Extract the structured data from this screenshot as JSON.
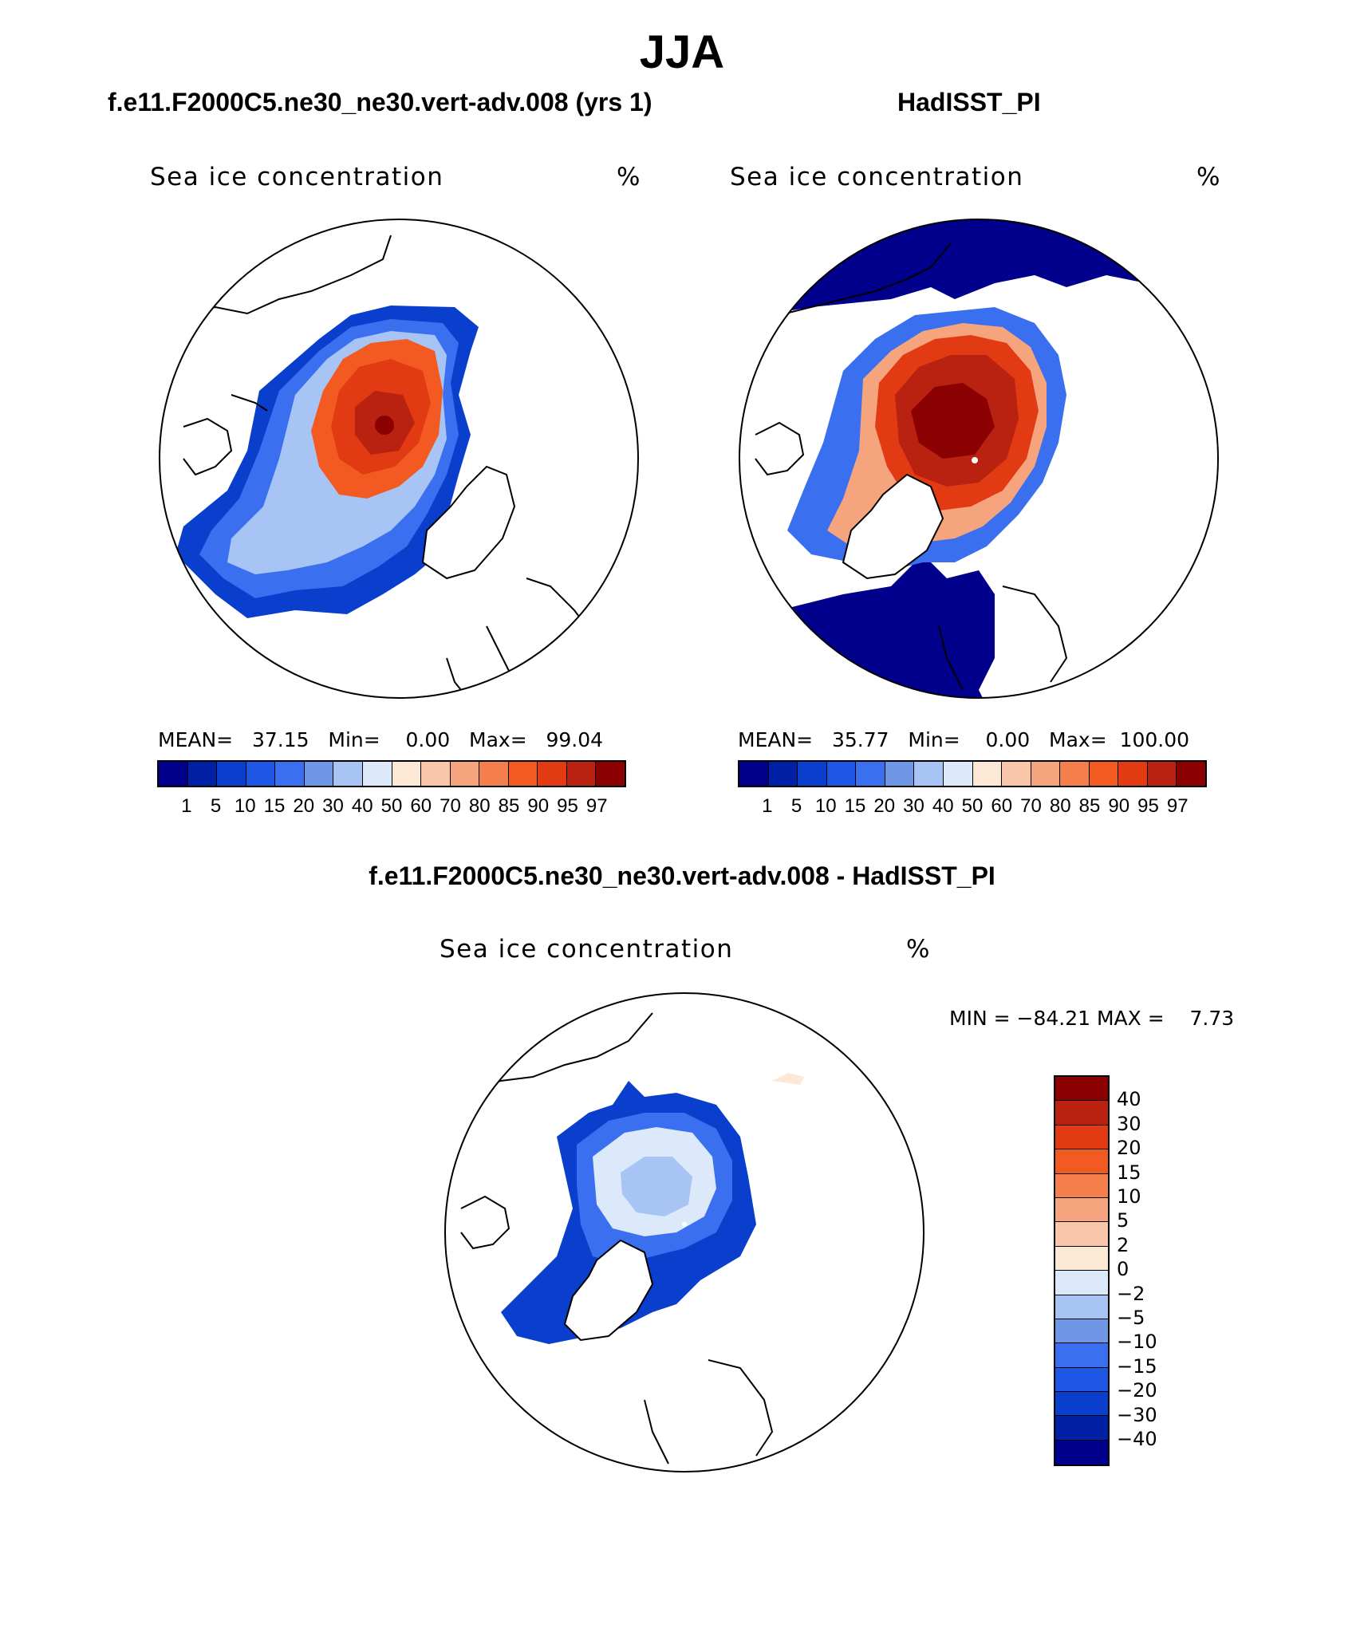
{
  "page_title": "JJA",
  "panels": {
    "model": {
      "case_title": "f.e11.F2000C5.ne30_ne30.vert-adv.008 (yrs 1)",
      "variable": "Sea ice concentration",
      "units": "%",
      "stats": {
        "mean_label": "MEAN=",
        "mean": "37.15",
        "min_label": "Min=",
        "min": "0.00",
        "max_label": "Max=",
        "max": "99.04"
      }
    },
    "obs": {
      "case_title": "HadISST_PI",
      "variable": "Sea ice concentration",
      "units": "%",
      "stats": {
        "mean_label": "MEAN=",
        "mean": "35.77",
        "min_label": "Min=",
        "min": "0.00",
        "max_label": "Max=",
        "max": "100.00"
      }
    },
    "diff": {
      "case_title": "f.e11.F2000C5.ne30_ne30.vert-adv.008 - HadISST_PI",
      "variable": "Sea ice concentration",
      "units": "%",
      "stats": {
        "min_label": "MIN =",
        "min": "−84.21",
        "max_label": "MAX =",
        "max": "7.73"
      }
    }
  },
  "colorbars": {
    "abs_levels": [
      "1",
      "5",
      "10",
      "15",
      "20",
      "30",
      "40",
      "50",
      "60",
      "70",
      "80",
      "85",
      "90",
      "95",
      "97"
    ],
    "abs_colors": [
      "#00008c",
      "#0021a5",
      "#0a3fcd",
      "#1e56e6",
      "#3a6fef",
      "#7096e6",
      "#a7c4f5",
      "#dbe9fb",
      "#fde7d5",
      "#f9c6a9",
      "#f6a47e",
      "#f57e4d",
      "#f25a21",
      "#e23b14",
      "#b92110",
      "#8b0000"
    ],
    "diff_levels": [
      "40",
      "30",
      "20",
      "15",
      "10",
      "5",
      "2",
      "0",
      "−2",
      "−5",
      "−10",
      "−15",
      "−20",
      "−30",
      "−40"
    ],
    "diff_colors": [
      "#8b0000",
      "#b92110",
      "#e23b14",
      "#f25a21",
      "#f57e4d",
      "#f6a47e",
      "#f9c6a9",
      "#fde7d5",
      "#dbe9fb",
      "#a7c4f5",
      "#7096e6",
      "#3a6fef",
      "#1e56e6",
      "#0a3fcd",
      "#0021a5",
      "#00008c"
    ]
  }
}
